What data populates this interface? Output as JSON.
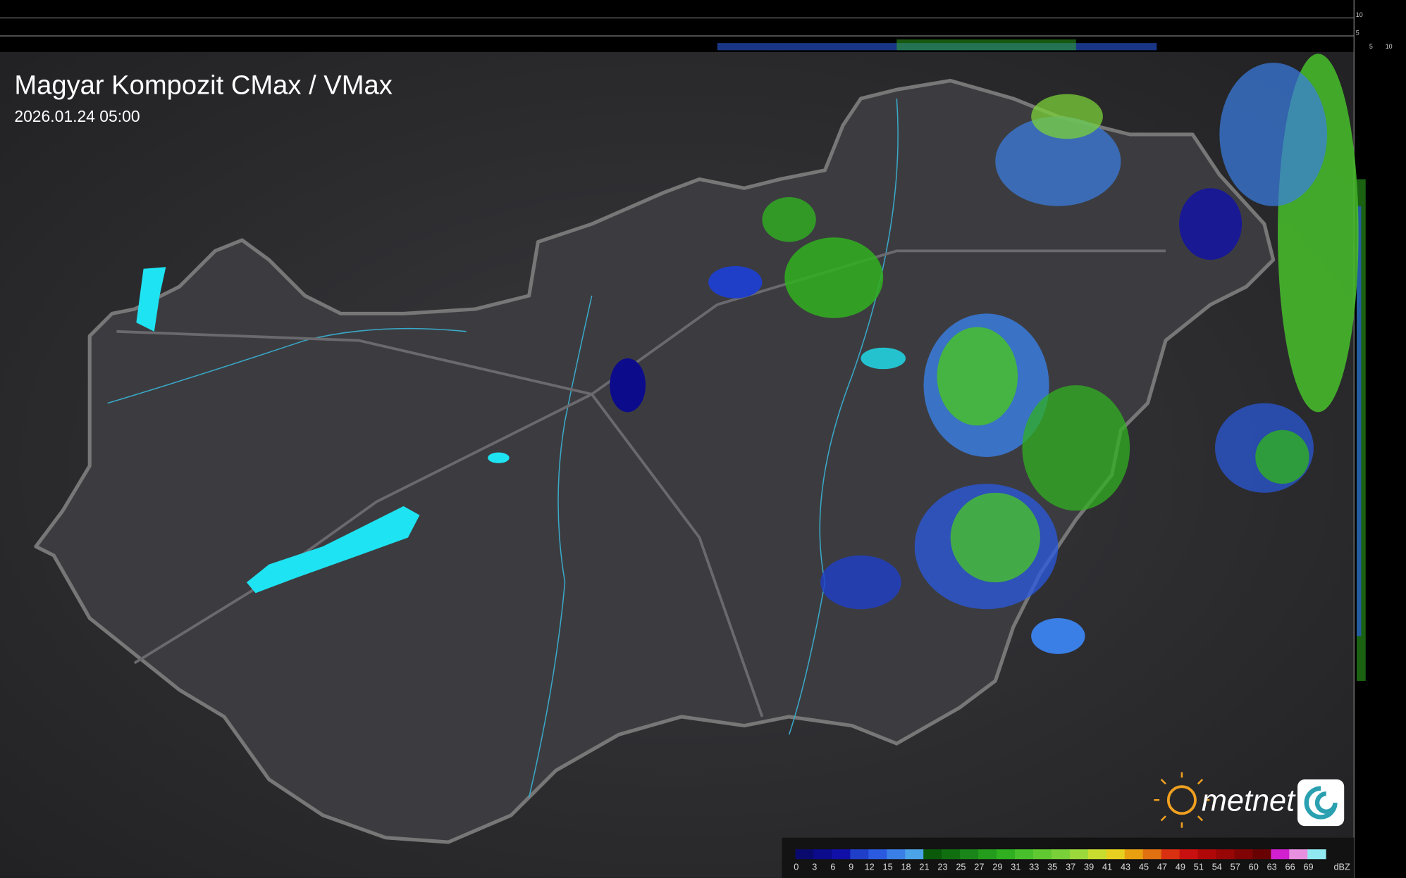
{
  "header": {
    "title": "Magyar Kompozit CMax / VMax",
    "timestamp": "2026.01.24 05:00"
  },
  "logo": {
    "text": "metnet"
  },
  "side_axis": {
    "top_labels": [
      "10",
      "5"
    ],
    "bottom_labels": [
      "5",
      "10"
    ]
  },
  "legend": {
    "ticks": [
      0,
      3,
      6,
      9,
      12,
      15,
      18,
      21,
      23,
      25,
      27,
      29,
      31,
      33,
      35,
      37,
      39,
      41,
      43,
      45,
      47,
      49,
      51,
      54,
      57,
      60,
      63,
      66,
      69
    ],
    "colors": [
      "#0a0a6e",
      "#0b0b8c",
      "#1010a8",
      "#1f3fc8",
      "#2a5ae0",
      "#3a7fe6",
      "#4ba3e8",
      "#0a5a0a",
      "#107010",
      "#1a861a",
      "#249c1c",
      "#30b020",
      "#48c02c",
      "#60c830",
      "#7ad038",
      "#9ad83c",
      "#c8dc30",
      "#e8d020",
      "#e8a010",
      "#e07010",
      "#d83010",
      "#c81010",
      "#b00808",
      "#980606",
      "#800404",
      "#680202",
      "#d020d0",
      "#e890e0",
      "#90e8f0"
    ],
    "unit": "dBZ"
  }
}
